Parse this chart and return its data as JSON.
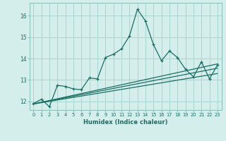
{
  "xlabel": "Humidex (Indice chaleur)",
  "bg_color": "#d4eeec",
  "grid_color": "#a8d4d0",
  "line_color": "#1a6e64",
  "xlim": [
    -0.5,
    23.5
  ],
  "ylim": [
    11.6,
    16.6
  ],
  "yticks": [
    12,
    13,
    14,
    15,
    16
  ],
  "xticks": [
    0,
    1,
    2,
    3,
    4,
    5,
    6,
    7,
    8,
    9,
    10,
    11,
    12,
    13,
    14,
    15,
    16,
    17,
    18,
    19,
    20,
    21,
    22,
    23
  ],
  "main_x": [
    0,
    1,
    2,
    3,
    4,
    5,
    6,
    7,
    8,
    9,
    10,
    11,
    12,
    13,
    14,
    15,
    16,
    17,
    18,
    19,
    20,
    21,
    22,
    23
  ],
  "main_y": [
    11.9,
    12.1,
    11.75,
    12.75,
    12.7,
    12.58,
    12.55,
    13.1,
    13.05,
    14.05,
    14.2,
    14.45,
    15.05,
    16.3,
    15.75,
    14.65,
    13.9,
    14.35,
    14.05,
    13.5,
    13.15,
    13.85,
    13.05,
    13.7
  ],
  "reg_lines": [
    {
      "x": [
        0,
        23
      ],
      "y": [
        11.88,
        13.75
      ]
    },
    {
      "x": [
        0,
        23
      ],
      "y": [
        11.88,
        13.3
      ]
    },
    {
      "x": [
        0,
        23
      ],
      "y": [
        11.88,
        13.55
      ]
    }
  ]
}
